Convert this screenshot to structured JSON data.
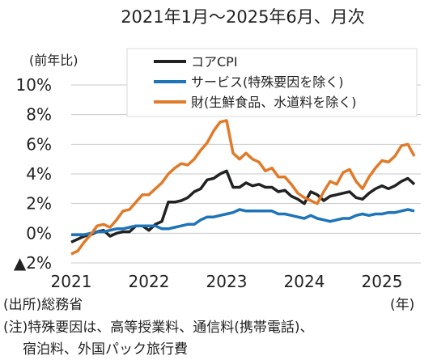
{
  "chart_data": {
    "type": "line",
    "title": "2021年1月～2025年6月、月次",
    "ylabel": "(前年比)",
    "xlabel": "(年)",
    "ylim": [
      -2,
      10
    ],
    "y_ticks": [
      {
        "value": 10,
        "label": "10%"
      },
      {
        "value": 8,
        "label": "8%"
      },
      {
        "value": 6,
        "label": "6%"
      },
      {
        "value": 4,
        "label": "4%"
      },
      {
        "value": 2,
        "label": "2%"
      },
      {
        "value": 0,
        "label": "0%"
      },
      {
        "value": -2,
        "label": "▲2%"
      }
    ],
    "x_ticks": [
      "2021",
      "2022",
      "2023",
      "2024",
      "2025"
    ],
    "x_start": "2021-01",
    "x_end": "2025-06",
    "grid": true,
    "legend_position": "top-right",
    "series": [
      {
        "name": "コアCPI",
        "color": "#222222",
        "values": [
          -0.6,
          -0.4,
          -0.2,
          -0.1,
          0.1,
          0.2,
          -0.2,
          0.0,
          0.1,
          0.1,
          0.5,
          0.5,
          0.2,
          0.6,
          0.8,
          2.1,
          2.1,
          2.2,
          2.4,
          2.8,
          3.0,
          3.6,
          3.7,
          4.0,
          4.2,
          3.1,
          3.1,
          3.4,
          3.2,
          3.3,
          3.1,
          3.1,
          2.8,
          2.9,
          2.5,
          2.3,
          2.0,
          2.8,
          2.6,
          2.2,
          2.5,
          2.6,
          2.7,
          2.8,
          2.4,
          2.3,
          2.7,
          3.0,
          3.2,
          3.0,
          3.2,
          3.5,
          3.7,
          3.3
        ]
      },
      {
        "name": "サービス(特殊要因を除く)",
        "color": "#1f74b8",
        "values": [
          -0.1,
          -0.1,
          -0.1,
          0.0,
          0.1,
          0.1,
          0.2,
          0.3,
          0.3,
          0.4,
          0.5,
          0.5,
          0.5,
          0.5,
          0.3,
          0.3,
          0.4,
          0.5,
          0.6,
          0.6,
          0.9,
          1.1,
          1.1,
          1.2,
          1.3,
          1.4,
          1.6,
          1.5,
          1.5,
          1.5,
          1.5,
          1.5,
          1.3,
          1.3,
          1.2,
          1.1,
          1.0,
          1.2,
          1.0,
          0.9,
          0.8,
          0.9,
          1.0,
          1.0,
          1.2,
          1.3,
          1.2,
          1.3,
          1.3,
          1.4,
          1.4,
          1.5,
          1.6,
          1.5
        ]
      },
      {
        "name": "財(生鮮食品、水道料を除く)",
        "color": "#e07b2a",
        "values": [
          -1.4,
          -1.2,
          -0.6,
          -0.1,
          0.5,
          0.6,
          0.4,
          0.9,
          1.5,
          1.6,
          2.1,
          2.6,
          2.6,
          3.0,
          3.4,
          4.0,
          4.4,
          4.7,
          4.6,
          5.0,
          5.6,
          6.1,
          6.9,
          7.5,
          7.6,
          5.4,
          5.0,
          5.4,
          5.0,
          4.8,
          4.2,
          4.4,
          3.8,
          3.8,
          3.3,
          2.7,
          2.4,
          2.2,
          2.0,
          2.8,
          3.5,
          3.3,
          4.1,
          4.3,
          3.5,
          3.0,
          3.8,
          4.4,
          4.9,
          4.8,
          5.2,
          5.9,
          6.0,
          5.2
        ]
      }
    ]
  },
  "notes": [
    "(出所)総務省",
    "(注)特殊要因は、高等授業料、通信料(携帯電話)、",
    "宿泊料、外国パック旅行費"
  ]
}
